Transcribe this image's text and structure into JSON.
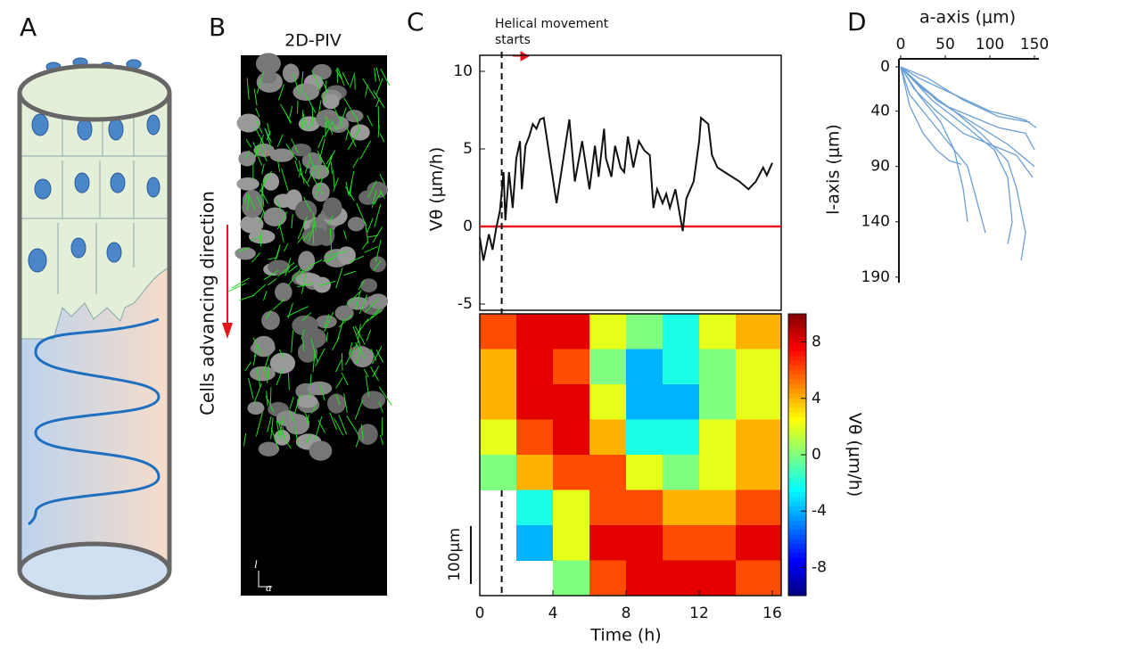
{
  "figure": {
    "panel_labels": [
      "A",
      "B",
      "C",
      "D"
    ],
    "piv_title": "2D-PIV",
    "direction_label": "Cells advancing direction",
    "axis_l": "l",
    "axis_a": "a"
  },
  "chart_data": [
    {
      "type": "line",
      "ylabel": "Vθ (μm/h)",
      "annotation": "Helical movement starts",
      "vline": 1.2,
      "color": "#111111",
      "zero_line_color": "#e8141b",
      "xlim": [
        0,
        16
      ],
      "ylim": [
        -5,
        10
      ],
      "yticks": [
        -5,
        0,
        5,
        10
      ],
      "x": [
        0,
        0.2,
        0.5,
        0.7,
        0.9,
        1.1,
        1.3,
        1.4,
        1.6,
        1.8,
        2.0,
        2.2,
        2.3,
        2.5,
        2.7,
        2.9,
        3.1,
        3.3,
        3.5,
        4.2,
        4.9,
        5.2,
        5.6,
        6.0,
        6.3,
        6.5,
        6.8,
        6.9,
        7.2,
        7.4,
        7.7,
        7.9,
        8.1,
        8.4,
        8.7,
        9.0,
        9.3,
        9.5,
        9.7,
        10.0,
        10.2,
        10.4,
        10.7,
        11.1,
        11.3,
        11.7,
        12.0,
        12.1,
        12.5,
        12.7,
        13.0,
        13.4,
        13.8,
        14.2,
        14.7,
        15.1,
        15.5,
        15.7,
        16.0
      ],
      "values": [
        -0.7,
        -2.2,
        -0.5,
        -1.5,
        -0.1,
        1.0,
        3.5,
        0.4,
        3.5,
        1.2,
        4.4,
        5.5,
        2.4,
        5.2,
        5.8,
        6.6,
        6.3,
        6.9,
        7.0,
        1.5,
        6.9,
        2.9,
        5.5,
        2.4,
        5.2,
        3.2,
        6.3,
        4.4,
        3.2,
        5.2,
        3.8,
        3.5,
        5.8,
        3.8,
        5.5,
        4.9,
        4.6,
        1.2,
        2.4,
        1.5,
        2.1,
        1.2,
        2.4,
        -0.3,
        1.8,
        2.9,
        5.5,
        7.0,
        6.6,
        4.6,
        3.8,
        3.5,
        3.2,
        2.9,
        2.4,
        2.9,
        3.8,
        3.3,
        4.1
      ]
    },
    {
      "type": "heatmap",
      "xlabel": "Time (h)",
      "colorbar_label": "Vθ (μm/h)",
      "scale_bar_label": "100μm",
      "colormap": "jet",
      "xlim": [
        0,
        16
      ],
      "xticks": [
        0,
        4,
        8,
        12,
        16
      ],
      "zlim": [
        -10,
        10
      ],
      "zticks": [
        8,
        4,
        0,
        -4,
        -8
      ],
      "x": [
        1,
        3,
        5,
        7,
        9,
        11,
        13,
        15
      ],
      "z": [
        [
          6,
          8,
          8,
          2,
          0,
          -2,
          2,
          4
        ],
        [
          4,
          8,
          6,
          0,
          -4,
          -2,
          0,
          2
        ],
        [
          4,
          8,
          8,
          2,
          -4,
          -4,
          0,
          2
        ],
        [
          2,
          6,
          8,
          4,
          -2,
          -2,
          2,
          4
        ],
        [
          0,
          4,
          6,
          6,
          2,
          0,
          2,
          4
        ],
        [
          null,
          -2,
          2,
          6,
          6,
          4,
          4,
          6
        ],
        [
          null,
          -4,
          2,
          8,
          8,
          6,
          6,
          8
        ],
        [
          null,
          null,
          0,
          6,
          8,
          8,
          8,
          6
        ]
      ]
    },
    {
      "type": "line",
      "xlabel": "a-axis (μm)",
      "ylabel": "l-axis (μm)",
      "color": "#6a9fd4",
      "y_inverted": true,
      "xlim": [
        0,
        155
      ],
      "xticks": [
        0,
        50,
        100,
        150
      ],
      "ylim": [
        0,
        195
      ],
      "yticks": [
        0,
        40,
        90,
        140,
        190
      ],
      "series": [
        {
          "x": [
            0,
            20,
            50,
            80,
            110,
            140,
            150
          ],
          "values": [
            0,
            15,
            35,
            45,
            55,
            60,
            75
          ]
        },
        {
          "x": [
            0,
            15,
            40,
            70,
            100,
            130,
            148
          ],
          "values": [
            0,
            20,
            40,
            60,
            70,
            80,
            100
          ]
        },
        {
          "x": [
            0,
            10,
            30,
            55,
            75,
            85,
            95
          ],
          "values": [
            0,
            25,
            45,
            70,
            90,
            120,
            150
          ]
        },
        {
          "x": [
            0,
            25,
            60,
            90,
            120,
            130,
            140,
            135
          ],
          "values": [
            0,
            20,
            40,
            60,
            85,
            110,
            150,
            175
          ]
        },
        {
          "x": [
            0,
            20,
            45,
            60,
            70,
            75
          ],
          "values": [
            0,
            25,
            50,
            75,
            110,
            140
          ]
        },
        {
          "x": [
            0,
            30,
            70,
            110,
            145
          ],
          "values": [
            0,
            10,
            30,
            45,
            50
          ]
        },
        {
          "x": [
            0,
            10,
            25,
            40,
            55,
            68
          ],
          "values": [
            0,
            35,
            60,
            75,
            85,
            88
          ]
        },
        {
          "x": [
            0,
            35,
            75,
            105,
            120,
            125,
            120
          ],
          "values": [
            0,
            30,
            55,
            75,
            100,
            140,
            160
          ]
        },
        {
          "x": [
            0,
            20,
            60,
            100,
            140,
            152
          ],
          "values": [
            0,
            10,
            25,
            40,
            48,
            55
          ]
        },
        {
          "x": [
            0,
            40,
            80,
            120,
            150
          ],
          "values": [
            0,
            30,
            50,
            70,
            90
          ]
        }
      ]
    }
  ]
}
